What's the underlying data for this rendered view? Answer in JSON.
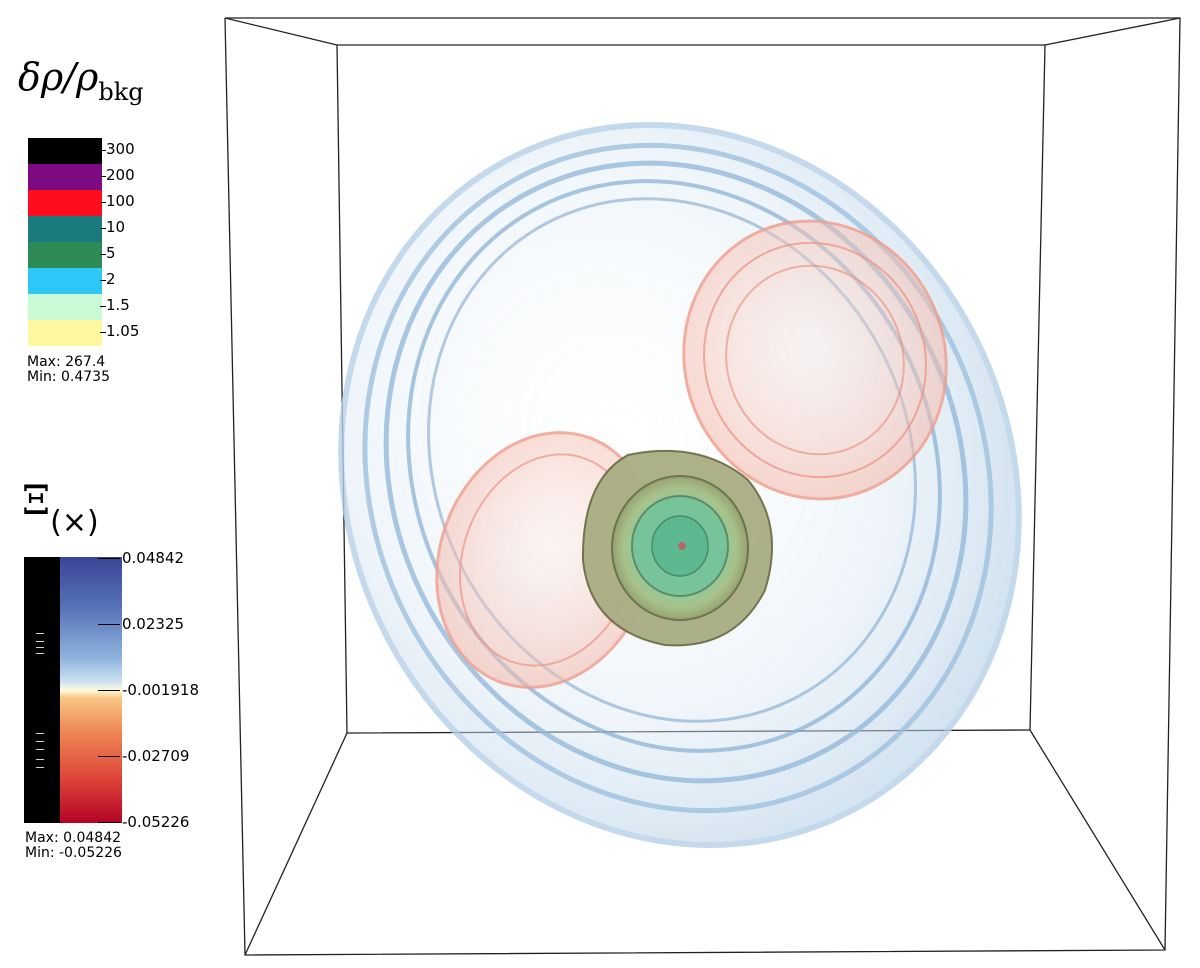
{
  "density_legend": {
    "title_main": "δρ/ρ",
    "title_sub": "bkg",
    "levels": [
      {
        "label": "300",
        "color": "#000000"
      },
      {
        "label": "200",
        "color": "#7d0a82"
      },
      {
        "label": "100",
        "color": "#ff0d1e"
      },
      {
        "label": "10",
        "color": "#1a7a7c"
      },
      {
        "label": "5",
        "color": "#2e8b57"
      },
      {
        "label": "2",
        "color": "#2ec8f7"
      },
      {
        "label": "1.5",
        "color": "#c8fad6"
      },
      {
        "label": "1.05",
        "color": "#fff8a0"
      }
    ],
    "max_text": "Max:  267.4",
    "min_text": "Min:  0.4735"
  },
  "xi_legend": {
    "title_main": "Ξ",
    "title_sub": "(×)",
    "tick_labels": [
      "0.04842",
      "0.02325",
      "-0.001918",
      "-0.02709",
      "-0.05226"
    ],
    "max_text": "Max:  0.04842",
    "min_text": "Min:  -0.05226"
  }
}
